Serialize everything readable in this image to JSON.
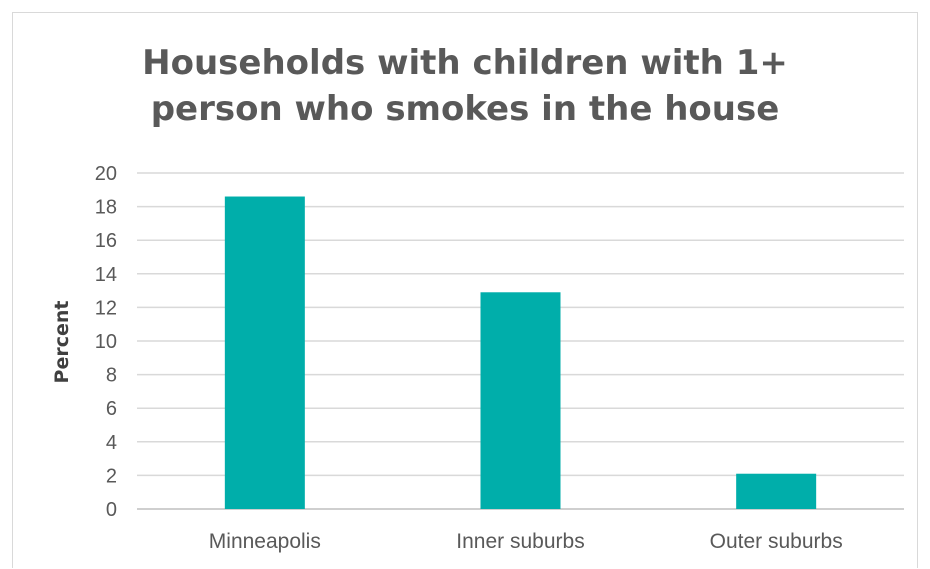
{
  "chart_data": {
    "type": "bar",
    "title": "Households with children with 1+ person who smokes in the house",
    "title_lines": [
      "Households with children with 1+",
      "person who smokes in the house"
    ],
    "xlabel": "",
    "ylabel": "Percent",
    "categories": [
      "Minneapolis",
      "Inner suburbs",
      "Outer suburbs"
    ],
    "values": [
      18.6,
      12.9,
      2.1
    ],
    "ylim": [
      0,
      20
    ],
    "yticks": [
      "0",
      "2",
      "4",
      "6",
      "8",
      "10",
      "12",
      "14",
      "16",
      "18",
      "20"
    ],
    "bar_color": "#00AEAA",
    "grid": true,
    "legend": "none"
  }
}
